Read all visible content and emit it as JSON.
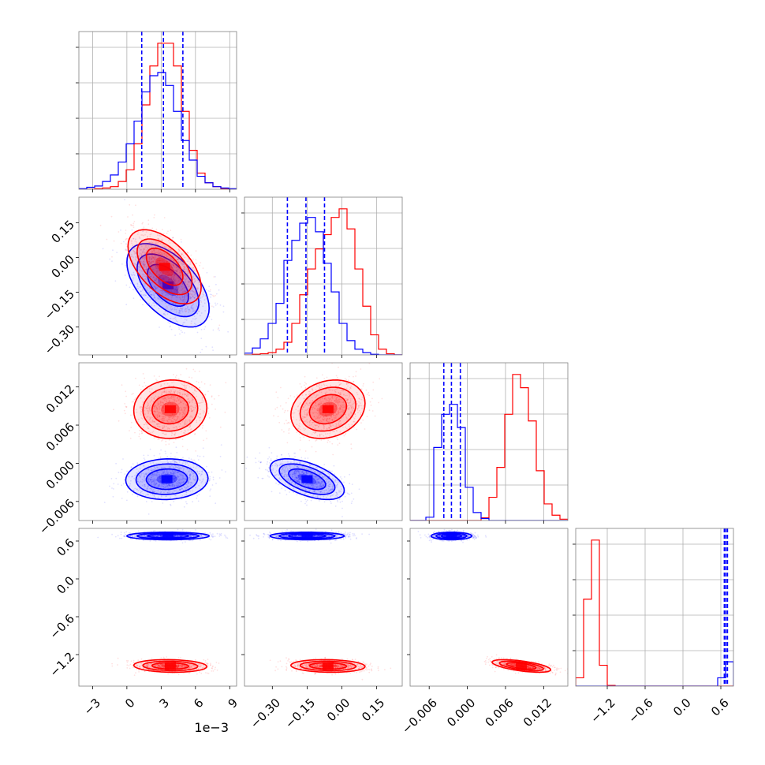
{
  "figure": {
    "offset_label": "1e−3"
  },
  "colors": {
    "series_a": "#ff0000",
    "series_b": "#0000ff",
    "grid": "#b0b0b0",
    "frame": "#808080"
  },
  "chart_data": {
    "type": "corner",
    "series": [
      {
        "color": "#ff0000"
      },
      {
        "color": "#0000ff"
      }
    ],
    "params": [
      {
        "ticks": [
          -3,
          0,
          3,
          6,
          9
        ],
        "tick_labels": [
          "−3",
          "0",
          "3",
          "6",
          "9"
        ],
        "range": [
          -4.2,
          9.6
        ]
      },
      {
        "ticks": [
          -0.3,
          -0.15,
          0.0,
          0.15
        ],
        "tick_labels": [
          "−0.30",
          "−0.15",
          "0.00",
          "0.15"
        ],
        "range": [
          -0.42,
          0.26
        ]
      },
      {
        "ticks": [
          -0.006,
          0.0,
          0.006,
          0.012
        ],
        "tick_labels": [
          "−0.006",
          "0.000",
          "0.006",
          "0.012"
        ],
        "range": [
          -0.009,
          0.0158
        ]
      },
      {
        "ticks": [
          -1.2,
          -0.6,
          0.0,
          0.6
        ],
        "tick_labels": [
          "−1.2",
          "−0.6",
          "0.0",
          "0.6"
        ],
        "range": [
          -1.7,
          0.8
        ]
      }
    ],
    "histograms": [
      {
        "param": 0,
        "edges": [
          -4.2,
          -3.51,
          -2.82,
          -2.13,
          -1.44,
          -0.75,
          -0.06,
          0.63,
          1.32,
          2.01,
          2.7,
          3.39,
          4.08,
          4.77,
          5.46,
          6.15,
          6.84,
          7.53,
          8.22,
          8.91,
          9.6
        ],
        "series": [
          {
            "color": "#ff0000",
            "counts": [
              0,
              0,
              1,
              2,
              4,
              12,
              30,
              70,
              130,
              190,
              225,
              225,
              190,
              120,
              60,
              25,
              10,
              4,
              1,
              0
            ]
          },
          {
            "color": "#0000ff",
            "counts": [
              1,
              3,
              5,
              12,
              22,
              42,
              70,
              105,
              150,
              175,
              180,
              160,
              120,
              75,
              45,
              20,
              10,
              4,
              2,
              1
            ]
          }
        ],
        "quantile_lines": [
          1.3,
          3.2,
          4.9
        ]
      },
      {
        "param": 1,
        "edges": [
          -0.42,
          -0.386,
          -0.352,
          -0.318,
          -0.284,
          -0.25,
          -0.216,
          -0.182,
          -0.148,
          -0.114,
          -0.08,
          -0.046,
          -0.012,
          0.022,
          0.056,
          0.09,
          0.124,
          0.158,
          0.192,
          0.226,
          0.26
        ],
        "series": [
          {
            "color": "#ff0000",
            "counts": [
              0,
              1,
              2,
              4,
              10,
              22,
              55,
              105,
              150,
              185,
              210,
              240,
              255,
              220,
              150,
              85,
              35,
              10,
              2,
              0
            ]
          },
          {
            "color": "#0000ff",
            "counts": [
              3,
              12,
              28,
              55,
              90,
              165,
              200,
              230,
              240,
              215,
              160,
              110,
              55,
              25,
              10,
              4,
              1,
              0,
              0,
              0
            ]
          }
        ],
        "quantile_lines": [
          -0.235,
          -0.155,
          -0.075
        ]
      },
      {
        "param": 2,
        "edges": [
          -0.009,
          -0.00776,
          -0.00652,
          -0.00528,
          -0.00404,
          -0.0028,
          -0.00156,
          -0.00032,
          0.00092,
          0.00216,
          0.0034,
          0.00464,
          0.00588,
          0.00712,
          0.00836,
          0.0096,
          0.01084,
          0.01208,
          0.01332,
          0.01456,
          0.0158
        ],
        "series": [
          {
            "color": "#ff0000",
            "counts": [
              0,
              0,
              0,
              0,
              0,
              0,
              0,
              0,
              0,
              4,
              35,
              80,
              160,
              220,
              200,
              150,
              75,
              25,
              8,
              2
            ]
          },
          {
            "color": "#0000ff",
            "counts": [
              0,
              0,
              5,
              110,
              160,
              175,
              140,
              50,
              12,
              3,
              0,
              0,
              0,
              0,
              0,
              0,
              0,
              0,
              0,
              0
            ]
          }
        ],
        "quantile_lines": [
          -0.0037,
          -0.0025,
          -0.0011
        ]
      },
      {
        "param": 3,
        "edges": [
          -1.7,
          -1.575,
          -1.45,
          -1.325,
          -1.2,
          -1.075,
          -0.95,
          -0.825,
          -0.7,
          -0.575,
          -0.45,
          -0.325,
          -0.2,
          -0.075,
          0.05,
          0.175,
          0.3,
          0.425,
          0.55,
          0.675,
          0.8
        ],
        "series": [
          {
            "color": "#ff0000",
            "counts": [
              12,
              125,
              210,
              30,
              1,
              0,
              0,
              0,
              0,
              0,
              0,
              0,
              0,
              0,
              0,
              0,
              0,
              0,
              0,
              0
            ]
          },
          {
            "color": "#0000ff",
            "counts": [
              0,
              0,
              0,
              0,
              0,
              0,
              0,
              0,
              0,
              0,
              0,
              0,
              0,
              0,
              0,
              0,
              0,
              0,
              12,
              35
            ]
          }
        ],
        "quantile_lines": [
          0.655,
          0.68,
          0.705
        ]
      }
    ],
    "pairs": [
      {
        "x": 0,
        "y": 1,
        "series": [
          {
            "color": "#ff0000",
            "mean": [
              3.3,
              -0.04
            ],
            "sd": [
              1.6,
              0.08
            ],
            "rho": -0.55
          },
          {
            "color": "#0000ff",
            "mean": [
              3.6,
              -0.12
            ],
            "sd": [
              1.8,
              0.09
            ],
            "rho": -0.55
          }
        ]
      },
      {
        "x": 0,
        "y": 2,
        "series": [
          {
            "color": "#ff0000",
            "mean": [
              3.8,
              0.0085
            ],
            "sd": [
              1.6,
              0.0023
            ],
            "rho": 0.05
          },
          {
            "color": "#0000ff",
            "mean": [
              3.5,
              -0.0025
            ],
            "sd": [
              1.8,
              0.0016
            ],
            "rho": 0.05
          }
        ]
      },
      {
        "x": 1,
        "y": 2,
        "series": [
          {
            "color": "#ff0000",
            "mean": [
              -0.06,
              0.0085
            ],
            "sd": [
              0.08,
              0.0023
            ],
            "rho": 0.2
          },
          {
            "color": "#0000ff",
            "mean": [
              -0.15,
              -0.0025
            ],
            "sd": [
              0.08,
              0.0016
            ],
            "rho": -0.55
          }
        ]
      },
      {
        "x": 0,
        "y": 3,
        "series": [
          {
            "color": "#ff0000",
            "mean": [
              3.8,
              -1.38
            ],
            "sd": [
              1.6,
              0.05
            ],
            "rho": -0.1
          },
          {
            "color": "#0000ff",
            "mean": [
              3.6,
              0.68
            ],
            "sd": [
              1.8,
              0.03
            ],
            "rho": 0.0
          }
        ]
      },
      {
        "x": 1,
        "y": 3,
        "series": [
          {
            "color": "#ff0000",
            "mean": [
              -0.06,
              -1.38
            ],
            "sd": [
              0.08,
              0.05
            ],
            "rho": -0.1
          },
          {
            "color": "#0000ff",
            "mean": [
              -0.15,
              0.68
            ],
            "sd": [
              0.08,
              0.03
            ],
            "rho": 0.0
          }
        ]
      },
      {
        "x": 2,
        "y": 3,
        "series": [
          {
            "color": "#ff0000",
            "mean": [
              0.0085,
              -1.38
            ],
            "sd": [
              0.0023,
              0.05
            ],
            "rho": -0.6
          },
          {
            "color": "#0000ff",
            "mean": [
              -0.0025,
              0.68
            ],
            "sd": [
              0.0016,
              0.03
            ],
            "rho": 0.0
          }
        ]
      }
    ]
  }
}
